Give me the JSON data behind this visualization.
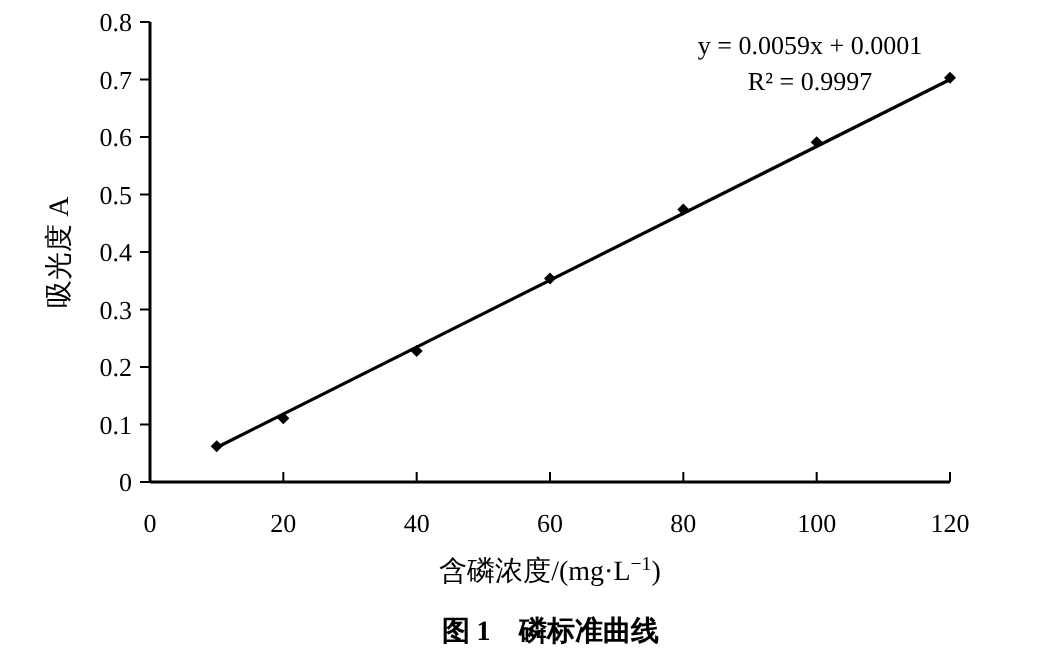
{
  "chart_data": {
    "type": "scatter",
    "title": "图 1　磷标准曲线",
    "xlabel": "含磷浓度/(mg·L$^{−1}$)",
    "ylabel": "吸光度 A",
    "annotations": [
      "y = 0.0059x + 0.0001",
      "R² = 0.9997"
    ],
    "marker": "diamond",
    "series": [
      {
        "color": "#000000",
        "x": [
          10,
          20,
          40,
          60,
          80,
          100,
          120
        ],
        "values": [
          0.062,
          0.111,
          0.228,
          0.354,
          0.474,
          0.591,
          0.703
        ]
      },
      {
        "type": "line",
        "color": "#000000",
        "marker": "none",
        "line_style": "solid",
        "x": [
          10,
          120
        ],
        "values": [
          0.06,
          0.7
        ]
      }
    ],
    "xlim": [
      0,
      120
    ],
    "xticks": [
      0,
      20,
      40,
      60,
      80,
      100,
      120
    ],
    "ylim": [
      0,
      0.8
    ],
    "yticks": [
      0,
      0.1,
      0.2,
      0.3,
      0.4,
      0.5,
      0.6,
      0.7,
      0.8
    ]
  }
}
